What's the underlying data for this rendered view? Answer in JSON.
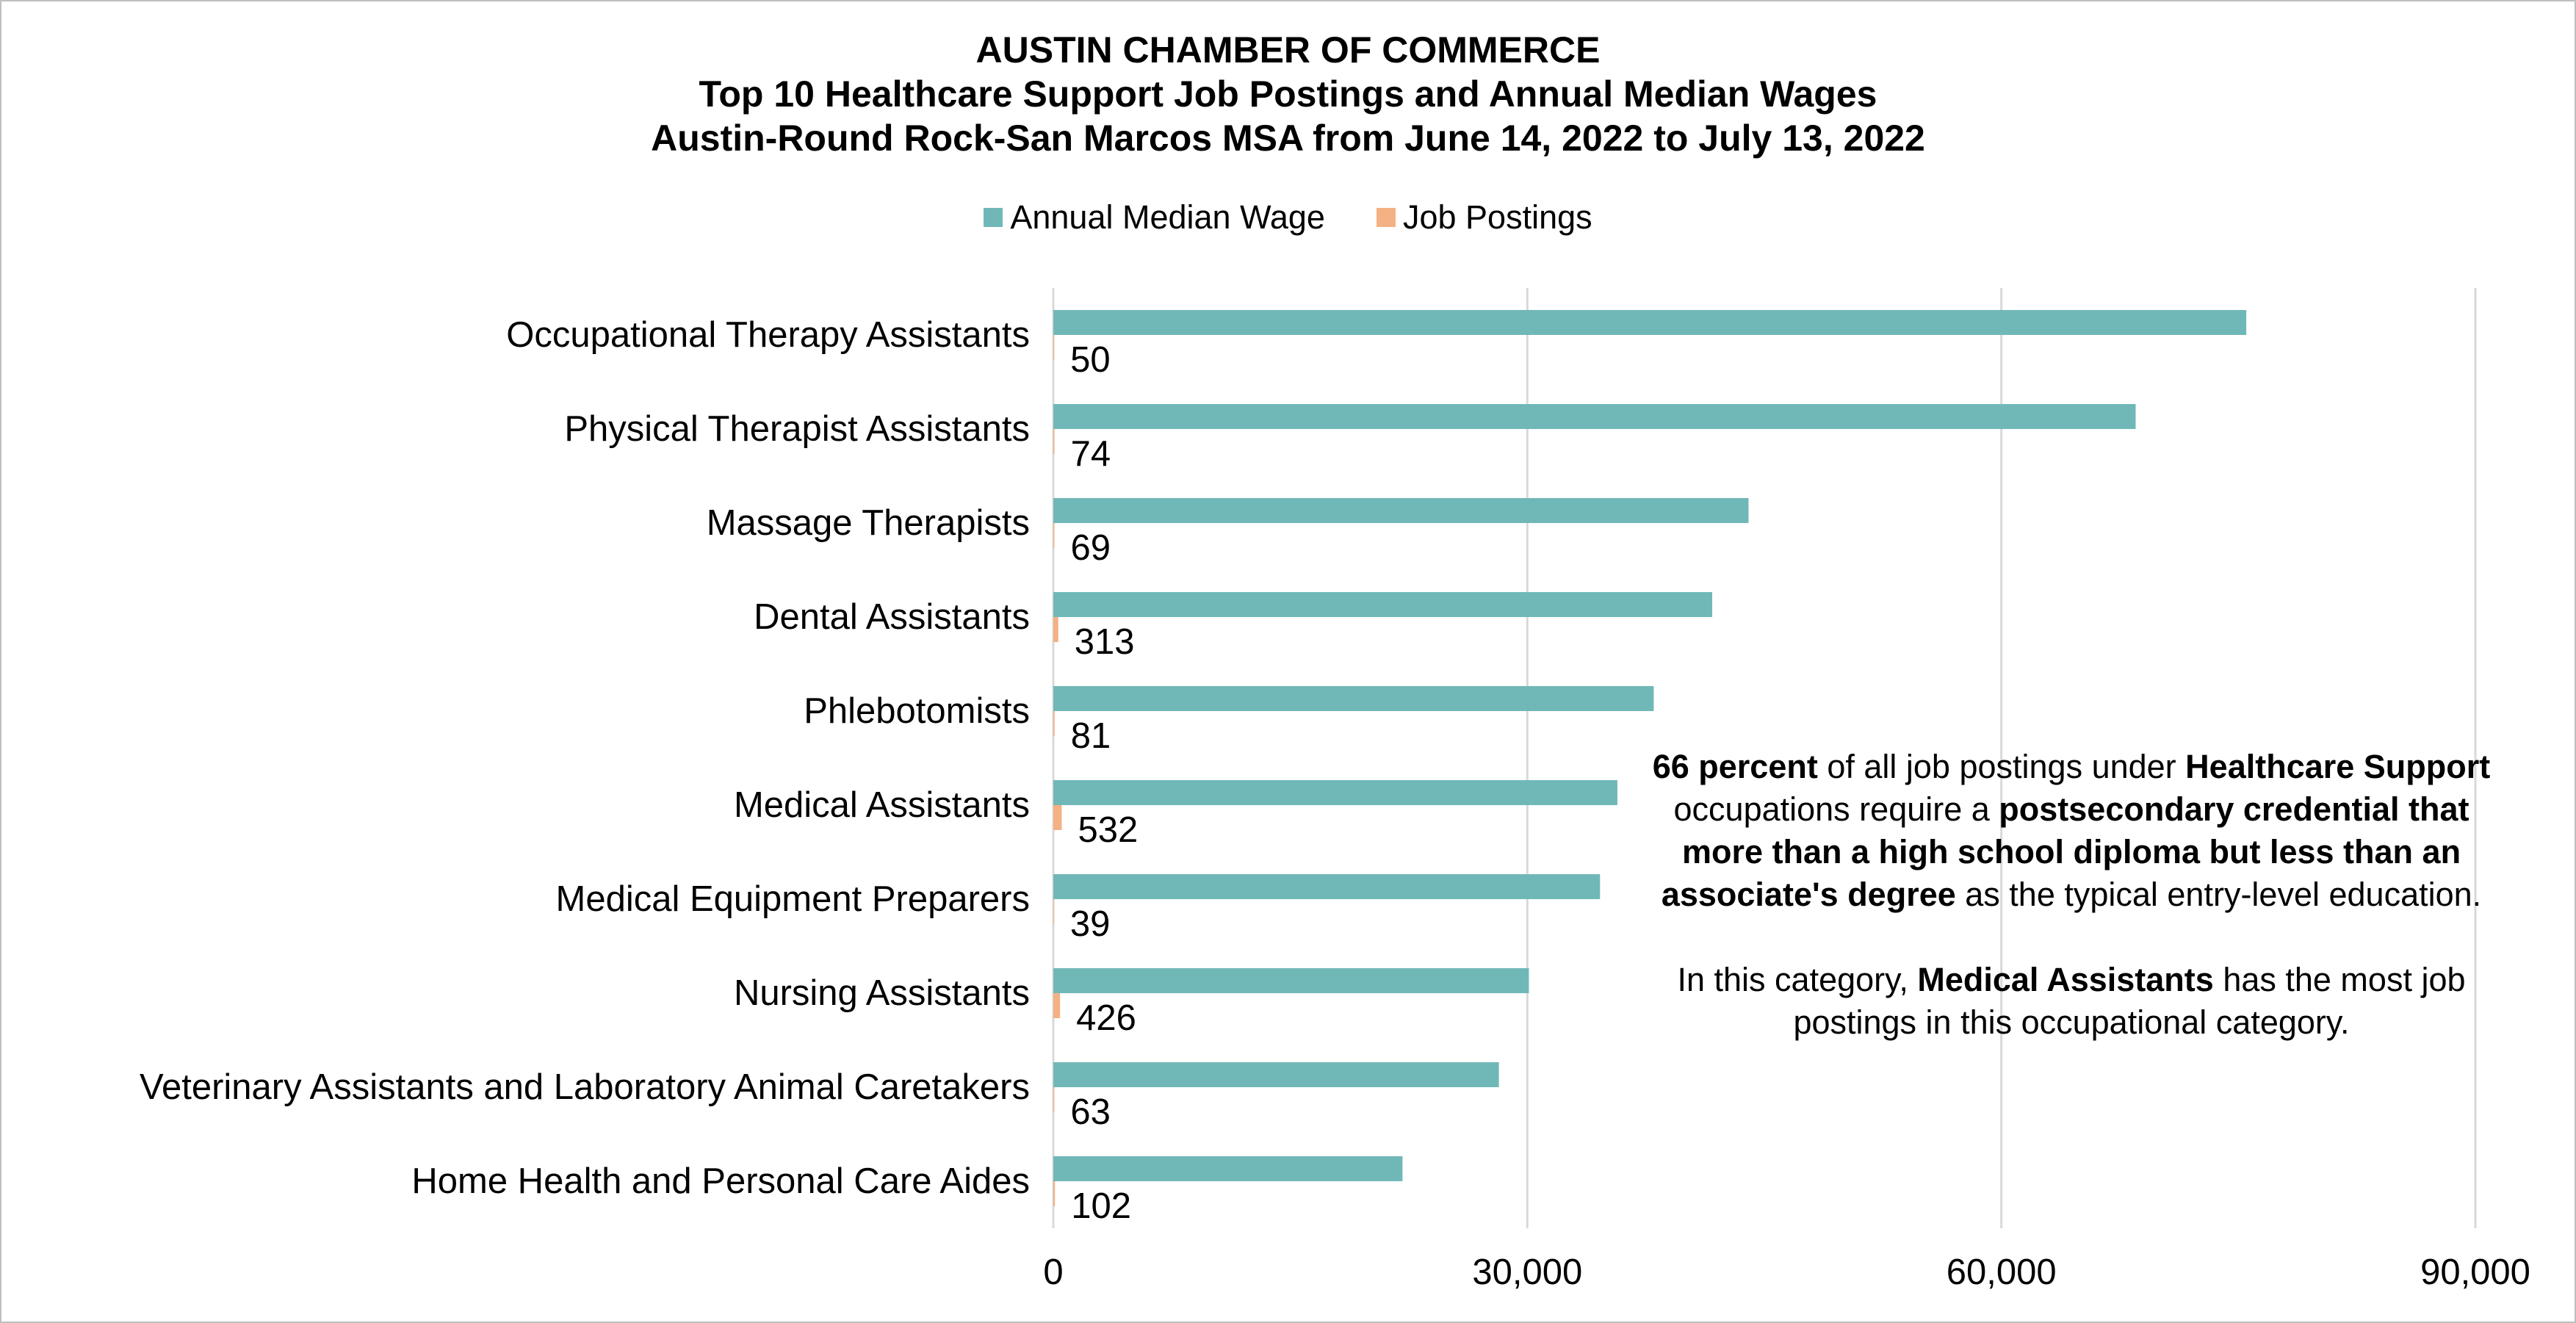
{
  "chart_data": {
    "type": "bar",
    "orientation": "horizontal",
    "title": "AUSTIN CHAMBER OF COMMERCE",
    "subtitle": [
      "Top 10 Healthcare Support Job Postings and Annual Median Wages",
      "Austin-Round Rock-San Marcos MSA from June 14, 2022 to July 13, 2022"
    ],
    "categories": [
      "Occupational Therapy Assistants",
      "Physical Therapist Assistants",
      "Massage Therapists",
      "Dental Assistants",
      "Phlebotomists",
      "Medical Assistants",
      "Medical Equipment Preparers",
      "Nursing Assistants",
      "Veterinary Assistants and Laboratory Animal Caretakers",
      "Home Health and Personal Care Aides"
    ],
    "series": [
      {
        "name": "Annual Median Wage",
        "values": [
          75500,
          68500,
          44000,
          41700,
          38000,
          35700,
          34600,
          30100,
          28200,
          22100
        ]
      },
      {
        "name": "Job Postings",
        "values": [
          50,
          74,
          69,
          313,
          81,
          532,
          39,
          426,
          63,
          102
        ]
      }
    ],
    "data_labels_series": "Job Postings",
    "xlim": [
      0,
      90000
    ],
    "xticks": [
      0,
      30000,
      60000,
      90000
    ],
    "xtick_labels": [
      "0",
      "30,000",
      "60,000",
      "90,000"
    ],
    "xlabel": "",
    "ylabel": "",
    "grid": true,
    "legend_position": "top"
  },
  "colors": {
    "Annual Median Wage": "#70b8b7",
    "Job Postings": "#f4b183",
    "grid": "#d9d9d9",
    "frame": "#bfbfbf"
  },
  "annotation": {
    "p1": [
      {
        "text": "66 percent",
        "bold": true
      },
      {
        "text": " of all job postings under ",
        "bold": false
      },
      {
        "text": "Healthcare Support",
        "bold": true
      },
      {
        "text": " occupations require a ",
        "bold": false
      },
      {
        "text": "postsecondary credential that more than a high school diploma but less than an associate's degree",
        "bold": true
      },
      {
        "text": " as the typical entry-level education.",
        "bold": false
      }
    ],
    "p2": [
      {
        "text": "In this category, ",
        "bold": false
      },
      {
        "text": "Medical Assistants",
        "bold": true
      },
      {
        "text": " has the most job postings in this occupational category.",
        "bold": false
      }
    ]
  }
}
